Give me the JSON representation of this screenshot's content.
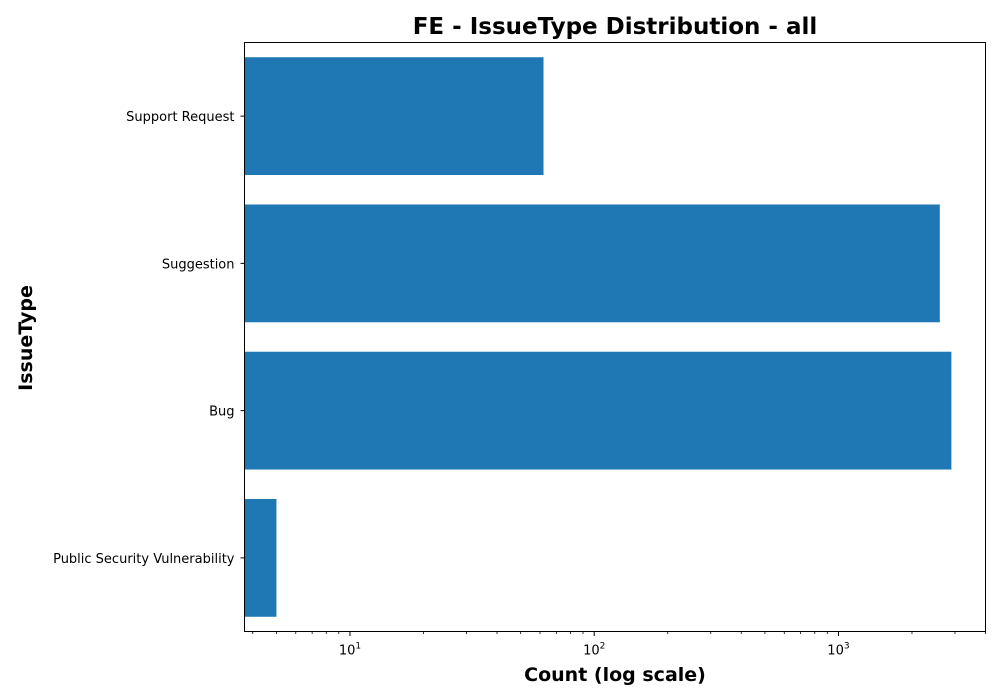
{
  "chart_data": {
    "type": "bar",
    "orientation": "horizontal",
    "title": "FE - IssueType Distribution - all",
    "xlabel": "Count (log scale)",
    "ylabel": "IssueType",
    "x_scale": "log",
    "xlim": [
      3.7,
      4000
    ],
    "x_ticks": [
      {
        "base": "10",
        "exp": "1",
        "value": 10
      },
      {
        "base": "10",
        "exp": "2",
        "value": 100
      },
      {
        "base": "10",
        "exp": "3",
        "value": 1000
      }
    ],
    "categories": [
      "Support Request",
      "Suggestion",
      "Bug",
      "Public Security Vulnerability"
    ],
    "values": [
      62,
      2600,
      2900,
      5
    ],
    "bar_color": "#1f77b4",
    "grid": false,
    "legend": false
  }
}
